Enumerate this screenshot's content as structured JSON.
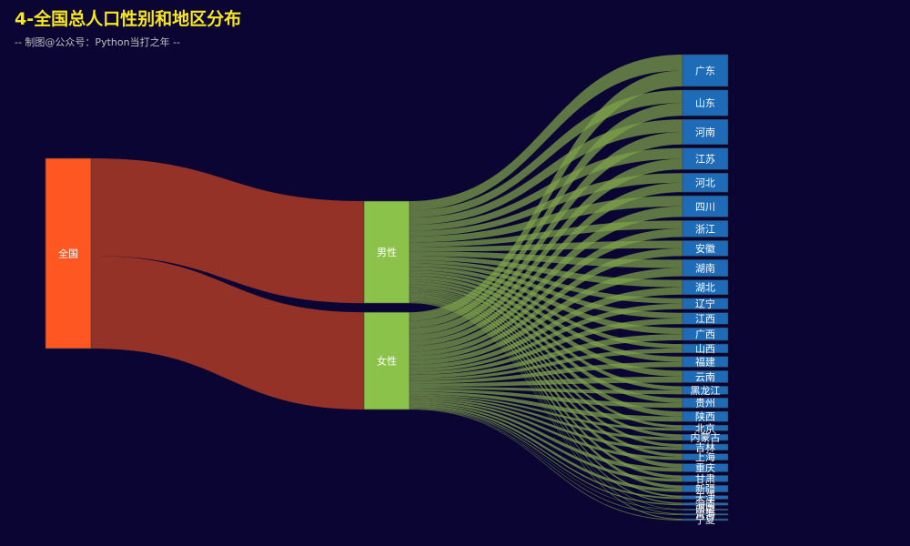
{
  "title": "4-全国总人口性别和地区分布",
  "subtitle": "-- 制图@公众号：Python当打之年 --",
  "colors": {
    "background": "#0b0533",
    "title": "#f8e71c",
    "node_root": "#ff5722",
    "node_gender": "#8bc34a",
    "node_region": "#1e6bb8",
    "link_root": "#9c3528",
    "link_region": "#7ea24a"
  },
  "chart_data": {
    "type": "sankey",
    "levels": [
      [
        "全国"
      ],
      [
        "男性",
        "女性"
      ],
      [
        "广东",
        "山东",
        "河南",
        "江苏",
        "河北",
        "四川",
        "浙江",
        "安徽",
        "湖南",
        "湖北",
        "辽宁",
        "江西",
        "广西",
        "山西",
        "福建",
        "云南",
        "黑龙江",
        "贵州",
        "陕西",
        "北京",
        "内蒙古",
        "吉林",
        "上海",
        "重庆",
        "甘肃",
        "新疆",
        "天津",
        "海南",
        "西藏",
        "青海",
        "宁夏"
      ]
    ],
    "root_links": [
      {
        "source": "全国",
        "target": "男性",
        "value": 51.2
      },
      {
        "source": "全国",
        "target": "女性",
        "value": 48.8
      }
    ],
    "region_values": [
      12.6,
      10.2,
      9.9,
      8.5,
      7.5,
      8.4,
      6.5,
      6.1,
      6.6,
      5.8,
      4.3,
      4.5,
      5.0,
      3.5,
      4.2,
      4.7,
      3.2,
      3.9,
      4.0,
      2.2,
      2.4,
      2.4,
      2.5,
      3.2,
      2.5,
      2.6,
      1.4,
      1.0,
      0.4,
      0.6,
      0.7
    ]
  }
}
